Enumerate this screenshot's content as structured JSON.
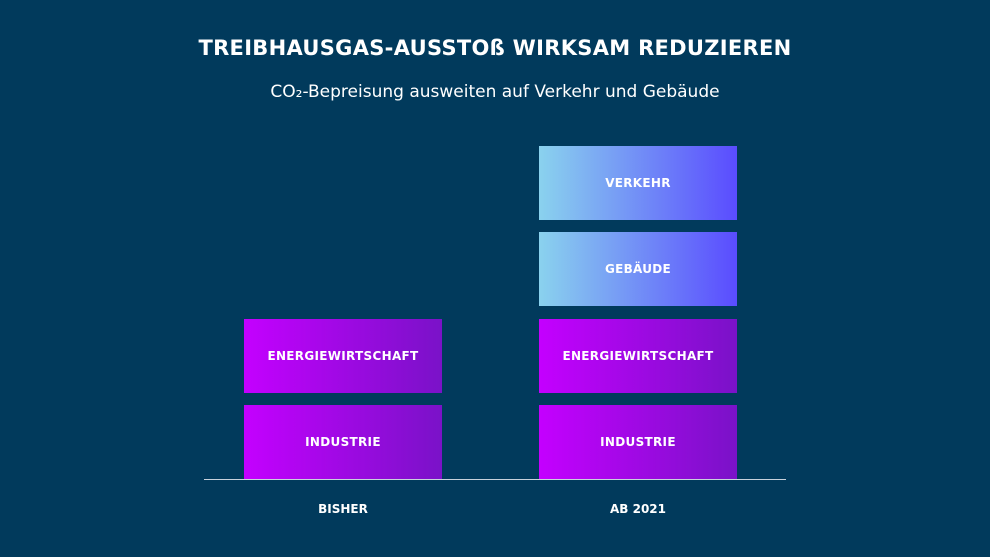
{
  "title": "TREIBHAUSGAS-AUSSTOß WIRKSAM REDUZIEREN",
  "subtitle": "CO₂-Bepreisung ausweiten auf Verkehr und Gebäude",
  "columns": [
    {
      "label": "BISHER",
      "blocks": [
        "INDUSTRIE",
        "ENERGIEWIRTSCHAFT"
      ]
    },
    {
      "label": "AB 2021",
      "blocks": [
        "INDUSTRIE",
        "ENERGIEWIRTSCHAFT",
        "GEBÄUDE",
        "VERKEHR"
      ]
    }
  ],
  "colors": {
    "background": "#013a5c",
    "purple_start": "#c400ff",
    "purple_end": "#7a12c8",
    "blue_start": "#8ad2ee",
    "blue_end": "#5a4cff"
  }
}
